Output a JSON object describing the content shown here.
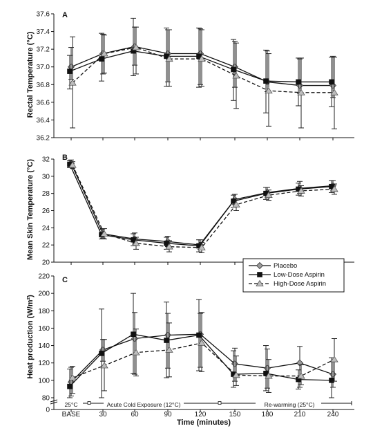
{
  "xlabel": "Time (minutes)",
  "phases": [
    {
      "label": "25°C",
      "x_start": "BASE",
      "x_end": "BASE"
    },
    {
      "label": "Acute Cold Exposure (12°C)",
      "x_start": "BASE",
      "x_end": "120"
    },
    {
      "label": "Re-warming (25°C)",
      "x_start": "120",
      "x_end": "240"
    }
  ],
  "series_styles": [
    {
      "name": "Placebo",
      "marker": "diamond",
      "marker_fill": "#9a9a9a",
      "dash": "solid"
    },
    {
      "name": "Low-Dose Aspirin",
      "marker": "square",
      "marker_fill": "#111111",
      "dash": "solid"
    },
    {
      "name": "High-Dose Aspirin",
      "marker": "triangle",
      "marker_fill": "#bdbdbd",
      "dash": "dashed"
    }
  ],
  "chart_data": [
    {
      "panel": "A",
      "type": "line",
      "ylabel": "Rectal Temperature (°C)",
      "ylim": [
        36.2,
        37.6
      ],
      "yticks": [
        "36.2",
        "36.4",
        "36.6",
        "36.8",
        "37.0",
        "37.2",
        "37.4",
        "37.6"
      ],
      "x": [
        "BASE",
        "30",
        "60",
        "90",
        "120",
        "150",
        "180",
        "210",
        "240"
      ],
      "series": [
        {
          "name": "Placebo",
          "values": [
            37.0,
            37.15,
            37.23,
            37.15,
            37.15,
            37.0,
            36.83,
            36.79,
            36.79
          ],
          "err_lo": [
            36.86,
            36.92,
            37.02,
            36.83,
            36.8,
            36.77,
            36.72,
            36.7,
            36.65
          ],
          "err_hi": [
            37.22,
            37.37,
            37.45,
            37.42,
            37.43,
            37.29,
            37.18,
            37.09,
            37.12
          ]
        },
        {
          "name": "Low-Dose Aspirin",
          "values": [
            36.95,
            37.09,
            37.18,
            37.12,
            37.12,
            36.97,
            36.84,
            36.83,
            36.83
          ],
          "err_lo": [
            36.75,
            36.84,
            36.9,
            36.78,
            36.77,
            36.62,
            36.48,
            36.56,
            36.55
          ],
          "err_hi": [
            37.13,
            37.38,
            37.55,
            37.44,
            37.44,
            37.31,
            37.19,
            37.1,
            37.11
          ]
        },
        {
          "name": "High-Dose Aspirin",
          "values": [
            36.82,
            37.15,
            37.22,
            37.09,
            37.09,
            36.9,
            36.73,
            36.71,
            36.71
          ],
          "err_lo": [
            36.31,
            36.93,
            36.92,
            36.78,
            36.78,
            36.53,
            36.33,
            36.31,
            36.3
          ],
          "err_hi": [
            37.34,
            37.36,
            37.45,
            37.42,
            37.42,
            37.27,
            37.15,
            37.1,
            37.11
          ]
        }
      ]
    },
    {
      "panel": "B",
      "type": "line",
      "ylabel": "Mean Skin Temperature (°C)",
      "ylim": [
        20,
        32
      ],
      "yticks": [
        "20",
        "22",
        "24",
        "26",
        "28",
        "30",
        "32"
      ],
      "x": [
        "BASE",
        "30",
        "60",
        "90",
        "120",
        "150",
        "180",
        "210",
        "240"
      ],
      "series": [
        {
          "name": "Placebo",
          "values": [
            31.5,
            23.3,
            22.7,
            22.4,
            22.0,
            27.3,
            28.1,
            28.6,
            28.9
          ],
          "err_lo": [
            31.1,
            22.8,
            22.1,
            21.8,
            21.5,
            26.7,
            27.5,
            28.0,
            28.3
          ],
          "err_hi": [
            31.9,
            23.9,
            23.4,
            23.0,
            22.6,
            27.9,
            28.7,
            29.4,
            29.5
          ]
        },
        {
          "name": "Low-Dose Aspirin",
          "values": [
            31.4,
            23.2,
            22.6,
            22.2,
            21.9,
            27.1,
            28.0,
            28.5,
            28.8
          ],
          "err_lo": [
            31.0,
            22.7,
            21.9,
            21.5,
            21.2,
            26.4,
            27.3,
            27.8,
            28.1
          ],
          "err_hi": [
            31.8,
            23.8,
            23.3,
            22.9,
            22.6,
            27.8,
            28.7,
            29.2,
            29.5
          ]
        },
        {
          "name": "High-Dose Aspirin",
          "values": [
            31.3,
            23.3,
            22.2,
            21.8,
            21.7,
            26.7,
            27.8,
            28.3,
            28.5
          ],
          "err_lo": [
            30.9,
            22.7,
            21.5,
            21.2,
            21.1,
            26.0,
            27.2,
            27.7,
            27.9
          ],
          "err_hi": [
            31.7,
            23.9,
            22.9,
            22.5,
            22.3,
            27.4,
            28.4,
            28.9,
            29.1
          ]
        }
      ]
    },
    {
      "panel": "C",
      "type": "line",
      "ylabel": "Heat production (W/m²)",
      "ylim": [
        0,
        220
      ],
      "axis_break": true,
      "yticks": [
        "0",
        "80",
        "100",
        "120",
        "140",
        "160",
        "180",
        "200",
        "220"
      ],
      "x": [
        "BASE",
        "30",
        "60",
        "90",
        "120",
        "150",
        "180",
        "210",
        "240"
      ],
      "series": [
        {
          "name": "Placebo",
          "values": [
            98,
            135,
            148,
            152,
            153,
            119,
            114,
            120,
            107
          ],
          "err_lo": [
            82,
            122,
            107,
            114,
            115,
            99,
            91,
            92,
            92
          ],
          "err_hi": [
            115,
            147,
            178,
            177,
            177,
            137,
            136,
            139,
            122
          ]
        },
        {
          "name": "Low-Dose Aspirin",
          "values": [
            93,
            131,
            153,
            146,
            152,
            107,
            108,
            101,
            100
          ],
          "err_lo": [
            80,
            78,
            108,
            103,
            111,
            92,
            88,
            90,
            76
          ],
          "err_hi": [
            113,
            182,
            200,
            190,
            193,
            134,
            140,
            112,
            126
          ]
        },
        {
          "name": "High-Dose Aspirin",
          "values": [
            103,
            117,
            132,
            135,
            143,
            106,
            105,
            105,
            124
          ],
          "err_lo": [
            85,
            88,
            105,
            104,
            110,
            94,
            86,
            95,
            99
          ],
          "err_hi": [
            116,
            147,
            159,
            166,
            178,
            128,
            124,
            118,
            148
          ]
        }
      ]
    }
  ]
}
